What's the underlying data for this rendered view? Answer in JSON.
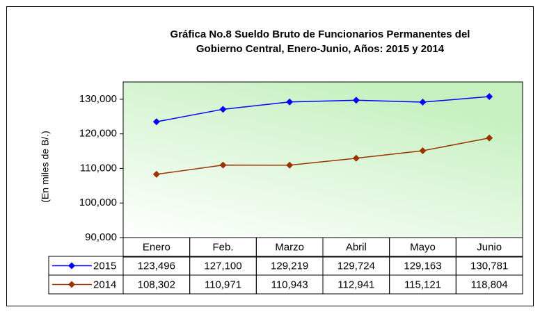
{
  "chart_data": {
    "type": "line",
    "title": [
      "Gráfica No.8 Sueldo Bruto de Funcionarios Permanentes del",
      "Gobierno Central, Enero-Junio, Años: 2015  y 2014"
    ],
    "y_label": "(En miles de B/.)",
    "categories": [
      "Enero",
      "Feb.",
      "Marzo",
      "Abril",
      "Mayo",
      "Junio"
    ],
    "series": [
      {
        "name": "2015",
        "color": "#0000ff",
        "values": [
          123496,
          127100,
          129219,
          129724,
          129163,
          130781
        ],
        "value_labels": [
          "123,496",
          "127,100",
          "129,219",
          "129,724",
          "129,163",
          "130,781"
        ]
      },
      {
        "name": "2014",
        "color": "#993300",
        "values": [
          108302,
          110971,
          110943,
          112941,
          115121,
          118804
        ],
        "value_labels": [
          "108,302",
          "110,971",
          "110,943",
          "112,941",
          "115,121",
          "118,804"
        ]
      }
    ],
    "ylim": [
      90000,
      135000
    ],
    "yticks": [
      {
        "value": 90000,
        "label": "90,000"
      },
      {
        "value": 100000,
        "label": "100,000"
      },
      {
        "value": 110000,
        "label": "110,000"
      },
      {
        "value": 120000,
        "label": "120,000"
      },
      {
        "value": 130000,
        "label": "130,000"
      }
    ],
    "data_table": true
  }
}
